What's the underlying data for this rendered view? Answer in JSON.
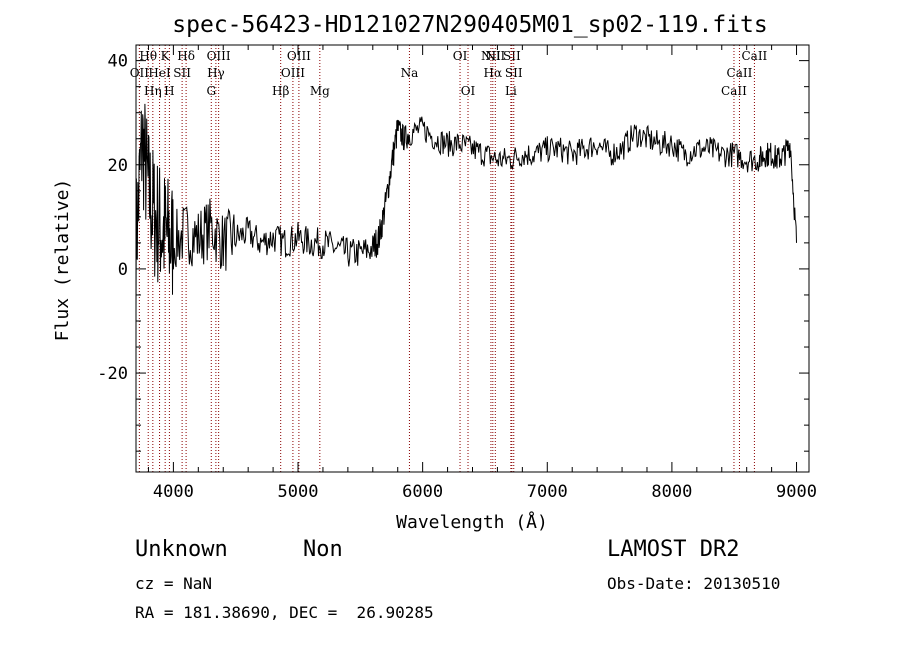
{
  "chart_data": {
    "type": "line",
    "title": "spec-56423-HD121027N290405M01_sp02-119.fits",
    "xlabel": "Wavelength (Å)",
    "ylabel": "Flux (relative)",
    "xlim": [
      3700,
      9100
    ],
    "ylim": [
      -39,
      43
    ],
    "xticks": [
      4000,
      5000,
      6000,
      7000,
      8000,
      9000
    ],
    "yticks": [
      -20,
      0,
      20,
      40
    ],
    "grid": false,
    "series": [
      {
        "x": [
          3700,
          3750,
          3800,
          3850,
          3900,
          3950,
          4000,
          4100,
          4200,
          4300,
          4400,
          4500,
          4600,
          4700,
          4800,
          4900,
          5000,
          5100,
          5200,
          5300,
          5400,
          5500,
          5600,
          5650,
          5700,
          5750,
          5800,
          5850,
          5900,
          6000,
          6100,
          6200,
          6300,
          6400,
          6500,
          6600,
          6700,
          6800,
          6900,
          7000,
          7100,
          7200,
          7300,
          7400,
          7500,
          7600,
          7700,
          7800,
          7900,
          8000,
          8100,
          8200,
          8300,
          8400,
          8500,
          8600,
          8700,
          8750,
          8800,
          8850,
          8900,
          8950,
          9000
        ],
        "y": [
          5,
          25,
          15,
          10,
          8,
          6,
          5,
          7,
          6,
          8,
          5,
          6,
          7,
          5,
          6,
          5,
          6,
          5,
          5,
          4,
          3,
          3,
          4,
          6,
          12,
          20,
          27,
          25,
          26,
          27,
          25,
          24,
          24,
          23,
          22,
          21,
          21,
          22,
          22,
          23,
          23,
          22,
          23,
          24,
          22,
          23,
          26,
          25,
          24,
          24,
          22,
          23,
          23,
          22,
          22,
          21,
          21,
          22,
          22,
          21,
          22,
          24,
          5
        ]
      }
    ],
    "spectral_lines": [
      {
        "name": "OII",
        "wavelength": 3727,
        "row": 1
      },
      {
        "name": "Hθ",
        "wavelength": 3798,
        "row": 0
      },
      {
        "name": "Hη",
        "wavelength": 3835,
        "row": 2
      },
      {
        "name": "HeI",
        "wavelength": 3889,
        "row": 1
      },
      {
        "name": "K",
        "wavelength": 3934,
        "row": 0
      },
      {
        "name": "H",
        "wavelength": 3968,
        "row": 2
      },
      {
        "name": "SII",
        "wavelength": 4070,
        "row": 1
      },
      {
        "name": "Hδ",
        "wavelength": 4102,
        "row": 0
      },
      {
        "name": "G",
        "wavelength": 4304,
        "row": 2
      },
      {
        "name": "Hγ",
        "wavelength": 4341,
        "row": 1
      },
      {
        "name": "OIII",
        "wavelength": 4363,
        "row": 0
      },
      {
        "name": "Hβ",
        "wavelength": 4861,
        "row": 2
      },
      {
        "name": "OIII",
        "wavelength": 4959,
        "row": 1
      },
      {
        "name": "OIII",
        "wavelength": 5007,
        "row": 0
      },
      {
        "name": "Mg",
        "wavelength": 5175,
        "row": 2
      },
      {
        "name": "Na",
        "wavelength": 5894,
        "row": 1
      },
      {
        "name": "OI",
        "wavelength": 6300,
        "row": 0
      },
      {
        "name": "OI",
        "wavelength": 6364,
        "row": 2
      },
      {
        "name": "NII",
        "wavelength": 6548,
        "row": 0
      },
      {
        "name": "Hα",
        "wavelength": 6563,
        "row": 1
      },
      {
        "name": "NII",
        "wavelength": 6583,
        "row": 0
      },
      {
        "name": "Li",
        "wavelength": 6708,
        "row": 2
      },
      {
        "name": "SII",
        "wavelength": 6716,
        "row": 0
      },
      {
        "name": "SII",
        "wavelength": 6731,
        "row": 1
      },
      {
        "name": "CaII",
        "wavelength": 8498,
        "row": 2
      },
      {
        "name": "CaII",
        "wavelength": 8542,
        "row": 1
      },
      {
        "name": "CaII",
        "wavelength": 8662,
        "row": 0
      }
    ]
  },
  "info": {
    "class": "Unknown",
    "subclass": "Non",
    "cz": "cz = NaN",
    "radec": "RA = 181.38690, DEC =  26.90285",
    "survey": "LAMOST DR2",
    "obsdate": "Obs-Date: 20130510"
  },
  "colors": {
    "line_marker": "#8b0000",
    "spectrum": "#000000"
  }
}
